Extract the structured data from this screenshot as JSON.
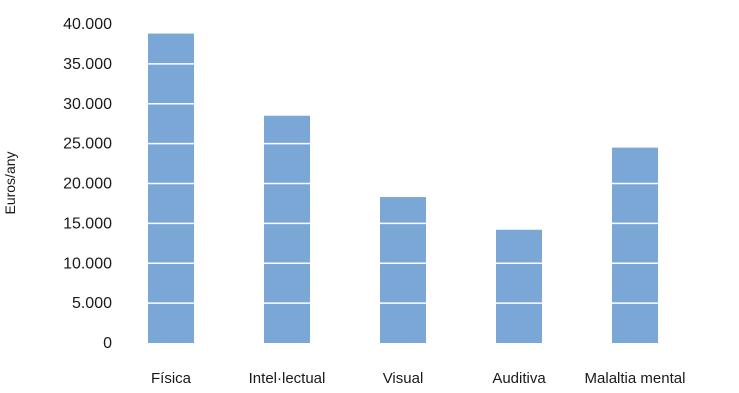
{
  "chart_data": {
    "type": "bar",
    "categories": [
      "Física",
      "Intel·lectual",
      "Visual",
      "Auditiva",
      "Malaltia mental"
    ],
    "values": [
      38800,
      28500,
      18300,
      14200,
      24500
    ],
    "ylabel": "Euros/any",
    "xlabel": "",
    "title": "",
    "ylim": [
      0,
      40000
    ],
    "yticks": [
      0,
      5000,
      10000,
      15000,
      20000,
      25000,
      30000,
      35000,
      40000
    ],
    "ytick_labels": [
      "0",
      "5.000",
      "10.000",
      "15.000",
      "20.000",
      "25.000",
      "30.000",
      "35.000",
      "40.000"
    ],
    "grid": false,
    "legend": "none",
    "bar_color": "#7ba7d6",
    "band_line_color": "#ffffff"
  }
}
